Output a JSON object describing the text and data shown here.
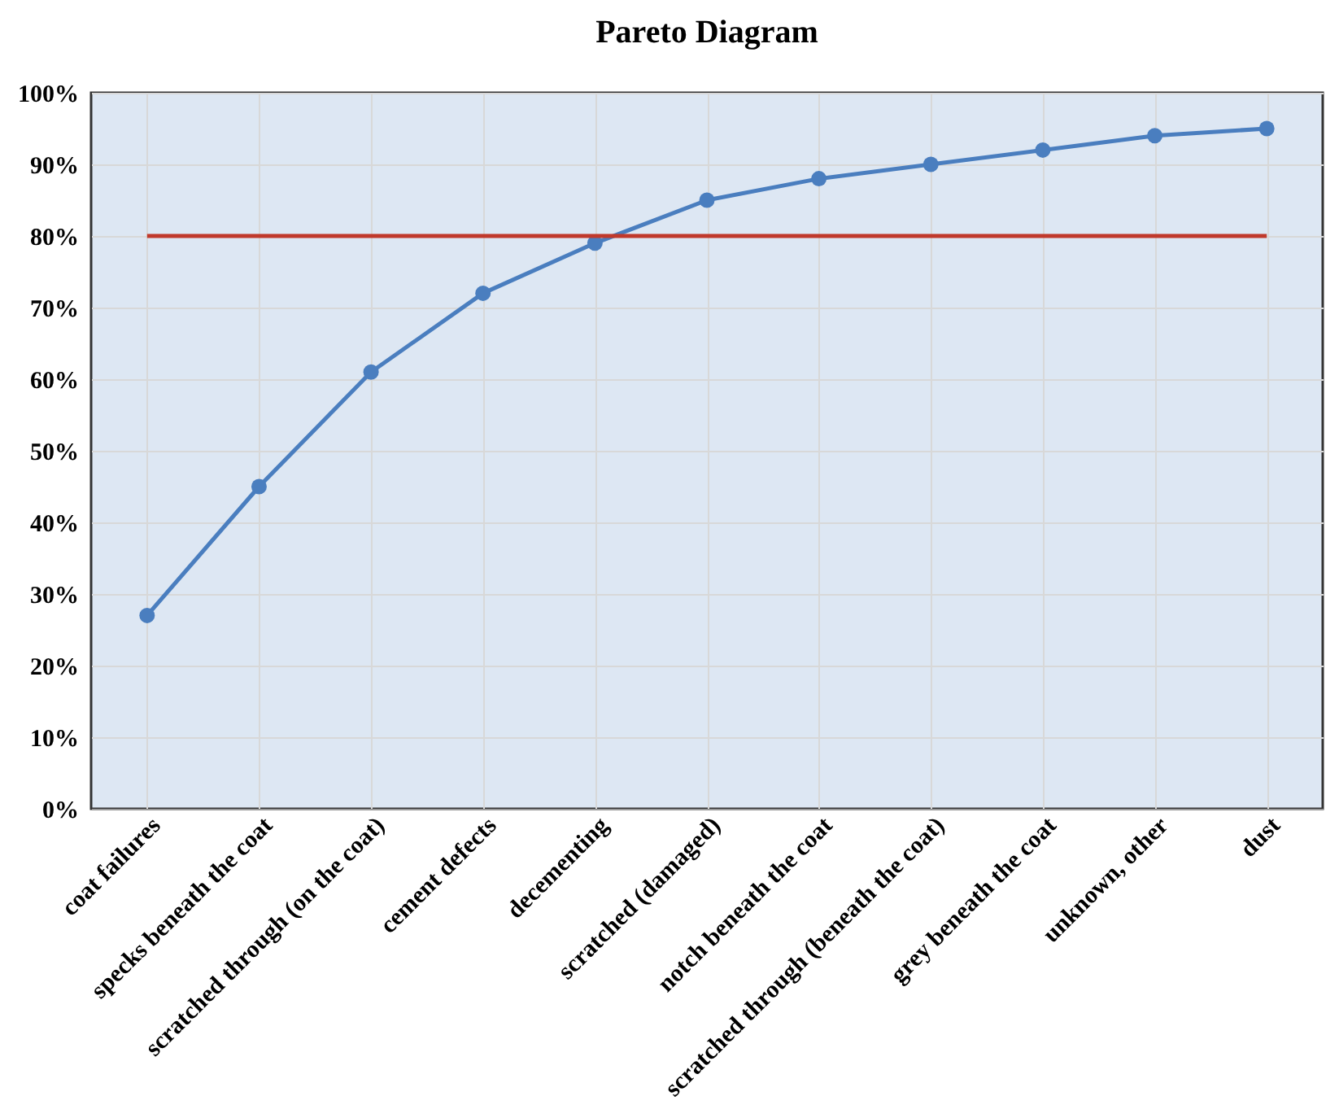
{
  "chart_data": {
    "type": "line",
    "title": "Pareto Diagram",
    "categories": [
      "coat failures",
      "specks beneath the coat",
      "scratched through (on the coat)",
      "cement defects",
      "decementing",
      "scratched (damaged)",
      "notch beneath the coat",
      "scratched through (beneath the coat)",
      "grey beneath the coat",
      "unknown, other",
      "dust"
    ],
    "series": [
      {
        "color": "#4a7ebf",
        "values": [
          27,
          45,
          61,
          72,
          79,
          85,
          88,
          90,
          92,
          94,
          95
        ]
      }
    ],
    "ylim": [
      0,
      100
    ],
    "yticks": [
      {
        "value": 0,
        "label": "0%"
      },
      {
        "value": 10,
        "label": "10%"
      },
      {
        "value": 20,
        "label": "20%"
      },
      {
        "value": 30,
        "label": "30%"
      },
      {
        "value": 40,
        "label": "40%"
      },
      {
        "value": 50,
        "label": "50%"
      },
      {
        "value": 60,
        "label": "60%"
      },
      {
        "value": 70,
        "label": "70%"
      },
      {
        "value": 80,
        "label": "80%"
      },
      {
        "value": 90,
        "label": "90%"
      },
      {
        "value": 100,
        "label": "100%"
      }
    ],
    "ref_lines": [
      {
        "axis": "y",
        "value": 80,
        "color": "#c0392b"
      }
    ],
    "grid": true,
    "marker": "circle",
    "line_style": "solid"
  }
}
